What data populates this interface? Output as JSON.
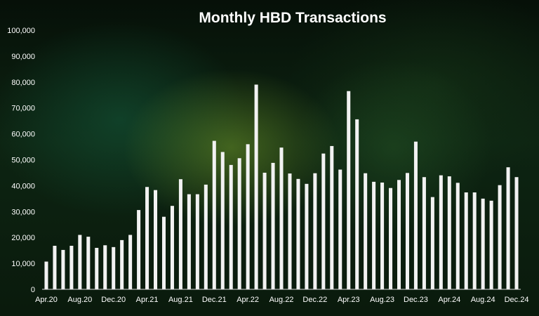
{
  "chart_data": {
    "type": "bar",
    "title": "Monthly HBD Transactions",
    "xlabel": "",
    "ylabel": "",
    "ylim": [
      0,
      100000
    ],
    "y_ticks": [
      "0",
      "10,000",
      "20,000",
      "30,000",
      "40,000",
      "50,000",
      "60,000",
      "70,000",
      "80,000",
      "90,000",
      "100,000"
    ],
    "y_tick_values": [
      0,
      10000,
      20000,
      30000,
      40000,
      50000,
      60000,
      70000,
      80000,
      90000,
      100000
    ],
    "x_tick_labels": [
      "Apr.20",
      "Aug.20",
      "Dec.20",
      "Apr.21",
      "Aug.21",
      "Dec.21",
      "Apr.22",
      "Aug.22",
      "Dec.22",
      "Apr.23",
      "Aug.23",
      "Dec.23",
      "Apr.24",
      "Aug.24",
      "Dec.24"
    ],
    "x_tick_every": 4,
    "grid": false,
    "bar_color": "#f2f2f2",
    "categories": [
      "Apr.20",
      "May.20",
      "Jun.20",
      "Jul.20",
      "Aug.20",
      "Sep.20",
      "Oct.20",
      "Nov.20",
      "Dec.20",
      "Jan.21",
      "Feb.21",
      "Mar.21",
      "Apr.21",
      "May.21",
      "Jun.21",
      "Jul.21",
      "Aug.21",
      "Sep.21",
      "Oct.21",
      "Nov.21",
      "Dec.21",
      "Jan.22",
      "Feb.22",
      "Mar.22",
      "Apr.22",
      "May.22",
      "Jun.22",
      "Jul.22",
      "Aug.22",
      "Sep.22",
      "Oct.22",
      "Nov.22",
      "Dec.22",
      "Jan.23",
      "Feb.23",
      "Mar.23",
      "Apr.23",
      "May.23",
      "Jun.23",
      "Jul.23",
      "Aug.23",
      "Sep.23",
      "Oct.23",
      "Nov.23",
      "Dec.23",
      "Jan.24",
      "Feb.24",
      "Mar.24",
      "Apr.24",
      "May.24",
      "Jun.24",
      "Jul.24",
      "Aug.24",
      "Sep.24",
      "Oct.24",
      "Nov.24",
      "Dec.24"
    ],
    "values": [
      10700,
      16800,
      15200,
      16800,
      21000,
      20300,
      16000,
      17000,
      16300,
      19000,
      21000,
      30600,
      39500,
      38300,
      28000,
      32200,
      42500,
      36700,
      36700,
      40400,
      57300,
      53000,
      48000,
      50600,
      56000,
      79000,
      45000,
      48800,
      54700,
      44700,
      42600,
      40700,
      44800,
      52400,
      55300,
      46200,
      76500,
      65600,
      44800,
      41500,
      41200,
      39100,
      42200,
      44900,
      57000,
      43300,
      35600,
      44000,
      43600,
      41100,
      37400,
      37400,
      35000,
      34200,
      40200,
      47100,
      43300
    ]
  }
}
